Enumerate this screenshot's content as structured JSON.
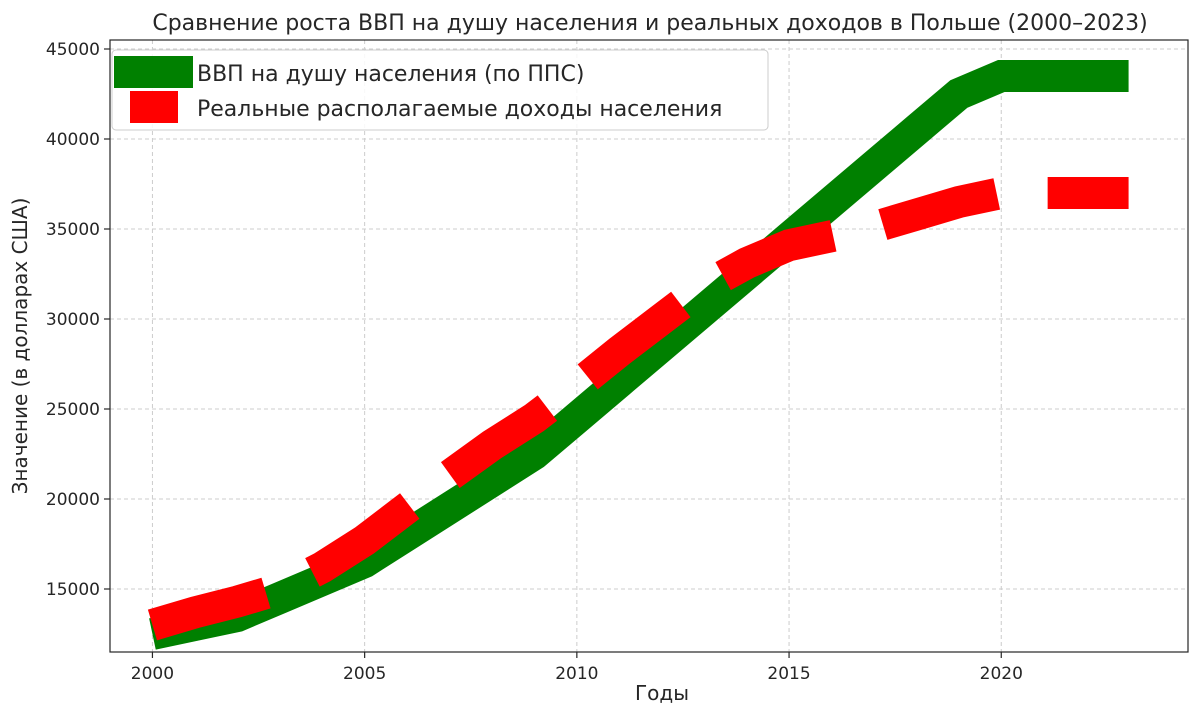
{
  "chart_data": {
    "type": "line",
    "title": "Сравнение роста ВВП на душу населения и реальных доходов в Польше (2000–2023)",
    "xlabel": "Годы",
    "ylabel": "Значение (в долларах США)",
    "xlim": [
      1999,
      2024.4
    ],
    "ylim": [
      11500,
      45500
    ],
    "xticks": [
      2000,
      2005,
      2010,
      2015,
      2020
    ],
    "yticks": [
      15000,
      20000,
      25000,
      30000,
      35000,
      40000,
      45000
    ],
    "grid": true,
    "legend_position": "top-left",
    "x": [
      2000,
      2001,
      2002,
      2003,
      2004,
      2005,
      2006,
      2007,
      2008,
      2009,
      2010,
      2011,
      2012,
      2013,
      2014,
      2015,
      2016,
      2017,
      2018,
      2019,
      2020,
      2021,
      2022,
      2023
    ],
    "series": [
      {
        "name": "ВВП на душу населения (по ППС)",
        "color": "#008000",
        "style": "solid",
        "values": [
          12500,
          13000,
          13500,
          14500,
          15500,
          16500,
          18000,
          19500,
          21000,
          22500,
          24500,
          26500,
          28500,
          30500,
          32500,
          34500,
          36500,
          38500,
          40500,
          42500,
          43500,
          43500,
          43500,
          43500
        ]
      },
      {
        "name": "Реальные располагаемые доходы населения",
        "color": "#ff0000",
        "style": "dashed",
        "values": [
          13000,
          13700,
          14300,
          15000,
          16200,
          17700,
          19500,
          21300,
          23000,
          24500,
          26300,
          28200,
          30000,
          31800,
          33100,
          34100,
          34600,
          35100,
          35800,
          36500,
          37000,
          37000,
          37000,
          37000
        ]
      }
    ]
  }
}
